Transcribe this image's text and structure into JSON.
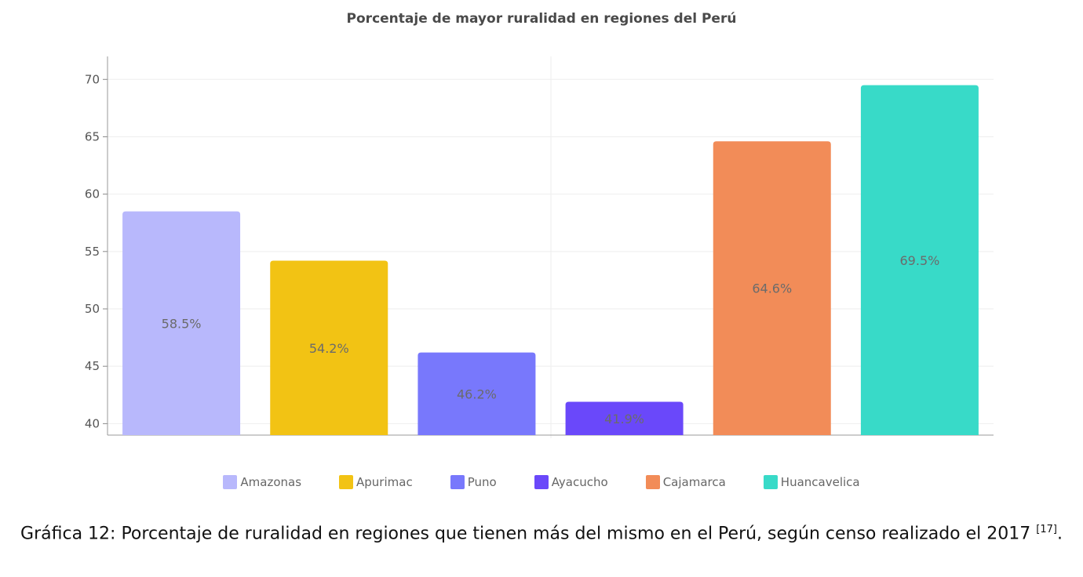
{
  "chart_data": {
    "type": "bar",
    "title": "Porcentaje de mayor ruralidad en regiones del Perú",
    "xlabel": "",
    "ylabel": "",
    "categories": [
      "Amazonas",
      "Apurimac",
      "Puno",
      "Ayacucho",
      "Cajamarca",
      "Huancavelica"
    ],
    "values": [
      58.5,
      54.2,
      46.2,
      41.9,
      64.6,
      69.5
    ],
    "data_labels": [
      "58.5%",
      "54.2%",
      "46.2%",
      "41.9%",
      "64.6%",
      "69.5%"
    ],
    "colors": [
      "#b8b8fc",
      "#f2c314",
      "#7878fc",
      "#6a48fa",
      "#f28c58",
      "#38dac8"
    ],
    "ylim": [
      39,
      72
    ],
    "yticks": [
      40,
      45,
      50,
      55,
      60,
      65,
      70
    ],
    "grid": true,
    "legend": "bottom"
  },
  "caption": {
    "text": "Gráfica 12: Porcentaje de ruralidad en regiones que tienen más del mismo en el Perú, según censo realizado el 2017",
    "ref": "[17]",
    "end": "."
  }
}
